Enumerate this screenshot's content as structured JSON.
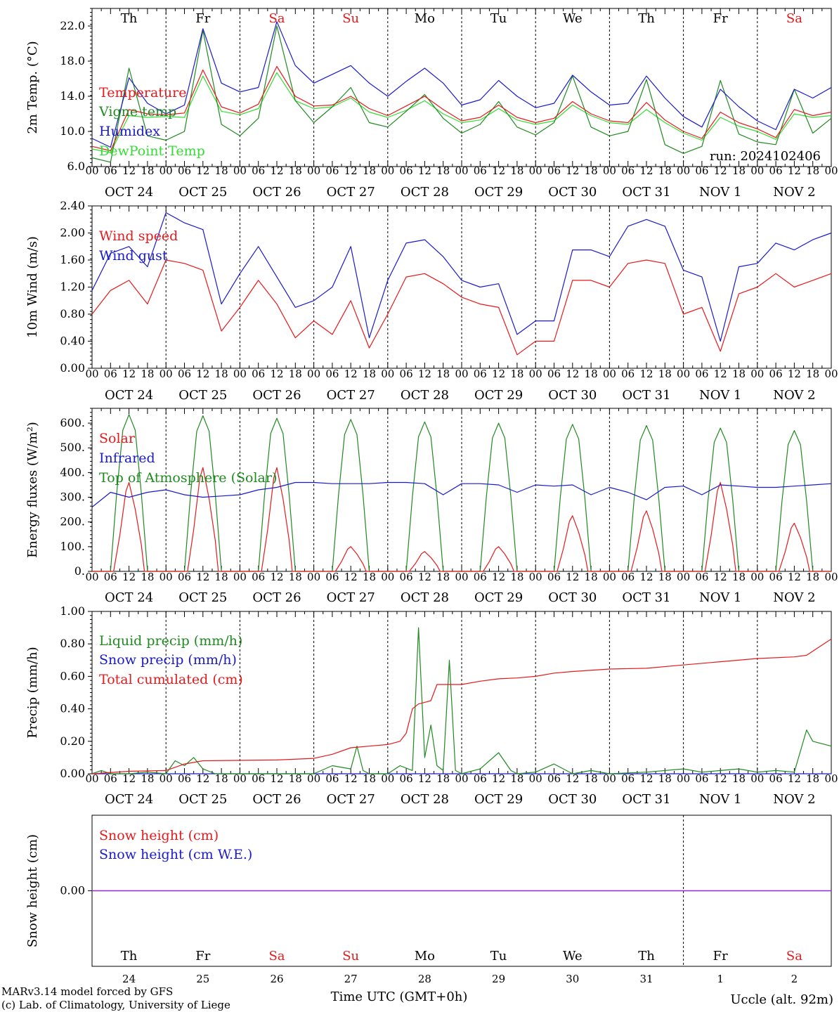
{
  "run_label": "run: 2024102406",
  "footer": {
    "model_line": "MARv3.14 model forced by GFS",
    "credit_line": "(c) Lab. of Climatology, University of Liege",
    "time_axis_label": "Time UTC (GMT+0h)",
    "location": "Uccle (alt. 92m)"
  },
  "days": {
    "dow": [
      "Th",
      "Fr",
      "Sa",
      "Su",
      "Mo",
      "Tu",
      "We",
      "Th",
      "Fr",
      "Sa"
    ],
    "weekend": [
      false,
      false,
      true,
      true,
      false,
      false,
      false,
      false,
      false,
      true
    ],
    "dates": [
      "OCT 24",
      "OCT 25",
      "OCT 26",
      "OCT 27",
      "OCT 28",
      "OCT 29",
      "OCT 30",
      "OCT 31",
      "NOV  1",
      "NOV  2"
    ],
    "day_numbers": [
      "24",
      "25",
      "26",
      "27",
      "28",
      "29",
      "30",
      "31",
      "1",
      "2"
    ],
    "hour_ticks": [
      "00",
      "06",
      "12",
      "18"
    ],
    "end_hour": "00"
  },
  "colors": {
    "red": "#e41a1c",
    "green": "#1f8a1f",
    "blue": "#1a1acc",
    "lightgreen": "#33dd33",
    "purple": "#8a2be2"
  },
  "chart_data": [
    {
      "type": "line",
      "ylabel": "2m Temp. (°C)",
      "ylim": [
        6,
        24
      ],
      "yticks": [
        "6.0",
        "10.0",
        "14.0",
        "18.0",
        "22.0"
      ],
      "x": [
        0,
        6,
        12,
        18,
        24,
        30,
        36,
        42,
        48,
        54,
        60,
        66,
        72,
        78,
        84,
        90,
        96,
        102,
        108,
        114,
        120,
        126,
        132,
        138,
        144,
        150,
        156,
        162,
        168,
        174,
        180,
        186,
        192,
        198,
        204,
        210,
        216,
        222,
        228,
        234,
        240
      ],
      "series": [
        {
          "name": "Temperature",
          "color": "red",
          "values": [
            8.3,
            7.8,
            12.5,
            12.0,
            11.9,
            12.1,
            17.0,
            12.8,
            12.1,
            13.1,
            17.4,
            14.0,
            12.9,
            13.0,
            14.0,
            12.6,
            11.8,
            12.9,
            14.0,
            12.5,
            11.2,
            11.6,
            13.0,
            11.6,
            11.0,
            11.5,
            13.4,
            12.0,
            11.2,
            11.0,
            13.3,
            11.3,
            10.0,
            9.2,
            12.2,
            11.0,
            10.3,
            9.3,
            12.5,
            11.8,
            12.2
          ]
        },
        {
          "name": "Vigne temp",
          "color": "green",
          "values": [
            7.0,
            6.5,
            17.2,
            9.5,
            9.0,
            10.0,
            21.5,
            10.8,
            9.5,
            11.5,
            22.0,
            13.5,
            11.0,
            12.8,
            15.0,
            11.0,
            10.5,
            12.3,
            14.2,
            11.5,
            9.8,
            10.8,
            13.4,
            10.5,
            9.6,
            11.0,
            16.3,
            10.5,
            9.5,
            10.0,
            15.9,
            8.5,
            7.5,
            8.3,
            15.8,
            9.7,
            8.8,
            8.5,
            14.8,
            9.8,
            11.5
          ]
        },
        {
          "name": "Humidex",
          "color": "blue",
          "values": [
            9.2,
            8.2,
            16.1,
            13.2,
            12.0,
            13.0,
            21.7,
            15.5,
            14.5,
            15.0,
            22.5,
            17.5,
            15.5,
            16.5,
            17.5,
            15.5,
            14.0,
            15.7,
            17.2,
            15.5,
            13.0,
            13.6,
            15.8,
            14.0,
            12.7,
            13.2,
            16.4,
            14.5,
            13.0,
            13.2,
            16.3,
            13.8,
            11.7,
            10.5,
            14.8,
            12.8,
            11.2,
            10.2,
            14.8,
            13.8,
            15.0
          ]
        },
        {
          "name": "DewPoint Temp",
          "color": "lightgreen",
          "values": [
            8.0,
            7.6,
            11.8,
            11.6,
            11.7,
            11.6,
            16.3,
            12.3,
            11.9,
            12.6,
            16.7,
            13.5,
            12.6,
            12.8,
            13.8,
            12.2,
            11.6,
            12.4,
            13.5,
            12.0,
            11.0,
            11.3,
            12.6,
            11.3,
            10.8,
            11.2,
            13.0,
            11.8,
            11.0,
            10.8,
            12.5,
            11.0,
            9.8,
            9.0,
            11.6,
            10.6,
            10.0,
            9.1,
            12.0,
            11.6,
            11.8
          ]
        }
      ]
    },
    {
      "type": "line",
      "ylabel": "10m Wind (m/s)",
      "ylim": [
        0,
        2.4
      ],
      "yticks": [
        "0.00",
        "0.40",
        "0.80",
        "1.20",
        "1.60",
        "2.00",
        "2.40"
      ],
      "x": [
        0,
        6,
        12,
        18,
        24,
        30,
        36,
        42,
        48,
        54,
        60,
        66,
        72,
        78,
        84,
        90,
        96,
        102,
        108,
        114,
        120,
        126,
        132,
        138,
        144,
        150,
        156,
        162,
        168,
        174,
        180,
        186,
        192,
        198,
        204,
        210,
        216,
        222,
        228,
        234,
        240
      ],
      "series": [
        {
          "name": "Wind speed",
          "color": "red",
          "values": [
            0.8,
            1.15,
            1.3,
            0.95,
            1.6,
            1.55,
            1.45,
            0.55,
            0.9,
            1.3,
            0.95,
            0.45,
            0.7,
            0.5,
            1.0,
            0.3,
            0.8,
            1.35,
            1.4,
            1.25,
            1.05,
            0.95,
            0.9,
            0.2,
            0.4,
            0.4,
            1.3,
            1.3,
            1.2,
            1.55,
            1.6,
            1.55,
            0.8,
            0.9,
            0.25,
            1.1,
            1.2,
            1.4,
            1.2,
            1.3,
            1.4
          ]
        },
        {
          "name": "Wind gust",
          "color": "blue",
          "values": [
            1.15,
            1.7,
            1.8,
            1.5,
            2.3,
            2.15,
            2.05,
            0.95,
            1.4,
            1.8,
            1.35,
            0.9,
            1.0,
            1.2,
            1.8,
            0.45,
            1.3,
            1.85,
            1.9,
            1.65,
            1.3,
            1.2,
            1.25,
            0.5,
            0.7,
            0.7,
            1.75,
            1.75,
            1.65,
            2.1,
            2.2,
            2.1,
            1.45,
            1.35,
            0.4,
            1.5,
            1.55,
            1.85,
            1.75,
            1.9,
            2.0
          ]
        }
      ]
    },
    {
      "type": "line",
      "ylabel": "Energy fluxes (W/m²)",
      "ylim": [
        0,
        660
      ],
      "yticks": [
        "0.",
        "100.",
        "200.",
        "300.",
        "400.",
        "500.",
        "600."
      ],
      "daily_peak_x_offset": 12,
      "series": [
        {
          "name": "Solar",
          "color": "red",
          "daily_peaks": [
            360,
            420,
            420,
            100,
            80,
            100,
            225,
            245,
            360,
            195
          ]
        },
        {
          "name": "Infrared",
          "color": "blue",
          "values_x": [
            0,
            6,
            12,
            18,
            24,
            30,
            36,
            42,
            48,
            54,
            60,
            66,
            72,
            78,
            84,
            90,
            96,
            102,
            108,
            114,
            120,
            126,
            132,
            138,
            144,
            150,
            156,
            162,
            168,
            174,
            180,
            186,
            192,
            198,
            204,
            210,
            216,
            222,
            228,
            234,
            240
          ],
          "values": [
            260,
            320,
            300,
            320,
            330,
            310,
            300,
            305,
            310,
            330,
            340,
            360,
            360,
            355,
            355,
            355,
            360,
            360,
            355,
            310,
            355,
            355,
            350,
            320,
            350,
            345,
            350,
            310,
            340,
            320,
            290,
            340,
            345,
            310,
            350,
            345,
            340,
            340,
            345,
            350,
            355
          ]
        },
        {
          "name": "Top of Atmosphere (Solar)",
          "color": "green",
          "daily_peaks": [
            635,
            630,
            620,
            615,
            605,
            600,
            595,
            590,
            580,
            570
          ]
        }
      ]
    },
    {
      "type": "line",
      "ylabel": "Precip (mm/h)",
      "ylim": [
        0,
        1.0
      ],
      "yticks": [
        "0.00",
        "0.20",
        "0.40",
        "0.60",
        "0.80",
        "1.00"
      ],
      "series": [
        {
          "name": "Liquid precip (mm/h)",
          "color": "green",
          "x": [
            0,
            3,
            6,
            12,
            18,
            24,
            27,
            30,
            33,
            36,
            40,
            48,
            60,
            72,
            78,
            84,
            86,
            88,
            90,
            96,
            100,
            104,
            106,
            108,
            110,
            112,
            114,
            116,
            118,
            120,
            126,
            132,
            136,
            138,
            144,
            150,
            156,
            162,
            168,
            180,
            192,
            198,
            204,
            210,
            216,
            222,
            228,
            232,
            234,
            240
          ],
          "values": [
            0,
            0.02,
            0,
            0,
            0.01,
            0,
            0.08,
            0.05,
            0.1,
            0.03,
            0,
            0,
            0,
            0,
            0.05,
            0.03,
            0.17,
            0.02,
            0,
            0,
            0.05,
            0.02,
            0.9,
            0.1,
            0.3,
            0.05,
            0.02,
            0.7,
            0.02,
            0,
            0.03,
            0.13,
            0.02,
            0,
            0.01,
            0.06,
            0,
            0.02,
            0,
            0.01,
            0.03,
            0.01,
            0.02,
            0.03,
            0.01,
            0.02,
            0.01,
            0.27,
            0.2,
            0.17
          ]
        },
        {
          "name": "Snow precip (mm/h)",
          "color": "blue",
          "x": [
            0,
            240
          ],
          "values": [
            0,
            0
          ]
        },
        {
          "name": "Total cumulated (cm)",
          "color": "red",
          "x": [
            0,
            12,
            24,
            30,
            36,
            60,
            72,
            78,
            84,
            90,
            96,
            100,
            102,
            104,
            106,
            108,
            110,
            112,
            114,
            120,
            126,
            132,
            138,
            144,
            150,
            156,
            168,
            180,
            192,
            204,
            216,
            228,
            232,
            236,
            240
          ],
          "values": [
            0,
            0.015,
            0.02,
            0.06,
            0.08,
            0.085,
            0.095,
            0.12,
            0.16,
            0.17,
            0.18,
            0.2,
            0.25,
            0.4,
            0.43,
            0.44,
            0.45,
            0.55,
            0.55,
            0.55,
            0.57,
            0.585,
            0.59,
            0.6,
            0.62,
            0.63,
            0.645,
            0.65,
            0.67,
            0.69,
            0.71,
            0.72,
            0.73,
            0.78,
            0.83
          ]
        }
      ]
    },
    {
      "type": "line",
      "ylabel": "Snow height (cm)",
      "ylim": [
        -1,
        1
      ],
      "yticks": [
        "0.00"
      ],
      "series": [
        {
          "name": "Snow height (cm)",
          "color": "red",
          "x": [
            0,
            240
          ],
          "values": [
            0,
            0
          ]
        },
        {
          "name": "Snow height (cm W.E.)",
          "color": "blue",
          "x": [
            0,
            240
          ],
          "values": [
            0,
            0
          ]
        }
      ]
    }
  ]
}
